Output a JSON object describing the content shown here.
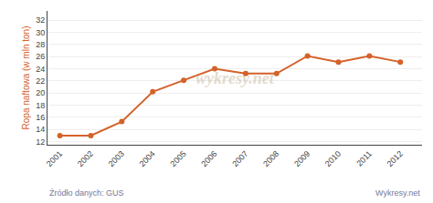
{
  "chart_data": {
    "type": "line",
    "x": [
      2001,
      2002,
      2003,
      2004,
      2005,
      2006,
      2007,
      2008,
      2009,
      2010,
      2011,
      2012
    ],
    "values": [
      13.0,
      13.0,
      15.3,
      20.2,
      22.1,
      24.0,
      23.2,
      23.2,
      26.1,
      25.1,
      26.1,
      25.1
    ],
    "color": "#d4622a",
    "marker": "circle",
    "ylabel": "Ropa naftowa (w mln ton)",
    "xlim": [
      2000.6,
      2012.7
    ],
    "xticks": [
      2001,
      2002,
      2003,
      2004,
      2005,
      2006,
      2007,
      2008,
      2009,
      2010,
      2011,
      2012
    ],
    "ylim": [
      11.5,
      33.5
    ],
    "yticks": [
      12,
      14,
      16,
      18,
      20,
      22,
      24,
      26,
      28,
      30,
      32
    ],
    "grid": true,
    "annotations": [
      "wykresy.net",
      "Źródło danych: GUS",
      "Wykresy.net"
    ]
  }
}
